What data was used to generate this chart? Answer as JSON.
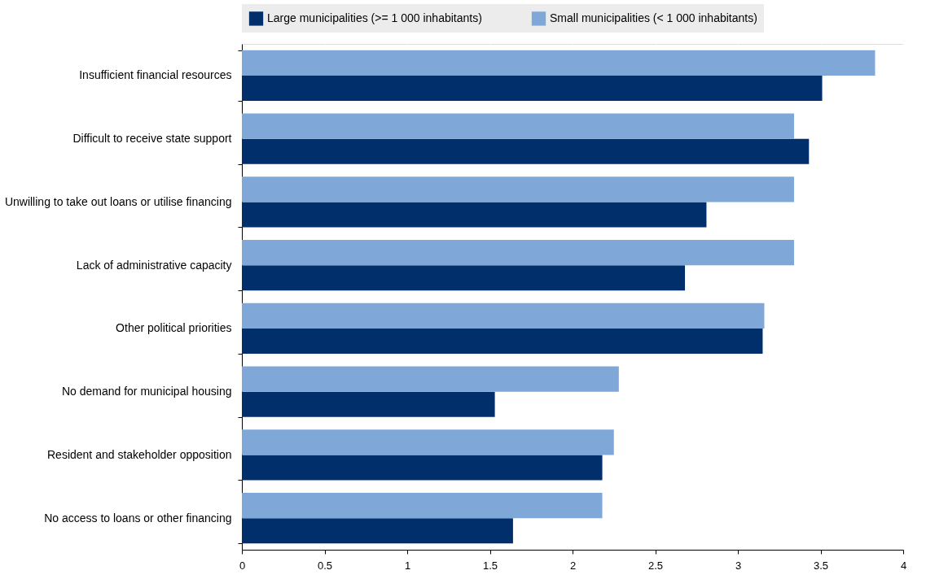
{
  "chart_data": {
    "type": "bar",
    "orientation": "horizontal",
    "categories": [
      "Insufficient financial resources",
      "Difficult to receive state support",
      "Unwilling to take out loans or utilise financing",
      "Lack of administrative capacity",
      "Other political priorities",
      "No demand for municipal housing",
      "Resident and stakeholder opposition",
      "No access to loans or other financing"
    ],
    "series": [
      {
        "name": "Large municipalities (>= 1 000 inhabitants)",
        "color": "#002f6c",
        "values": [
          3.51,
          3.43,
          2.81,
          2.68,
          3.15,
          1.53,
          2.18,
          1.64
        ]
      },
      {
        "name": "Small municipalities (< 1 000 inhabitants)",
        "color": "#7fa8d9",
        "values": [
          3.83,
          3.34,
          3.34,
          3.34,
          3.16,
          2.28,
          2.25,
          2.18
        ]
      }
    ],
    "xlim": [
      0,
      4
    ],
    "xticks": [
      0,
      0.5,
      1,
      1.5,
      2,
      2.5,
      3,
      3.5,
      4
    ],
    "grid": true,
    "legend": "top"
  }
}
